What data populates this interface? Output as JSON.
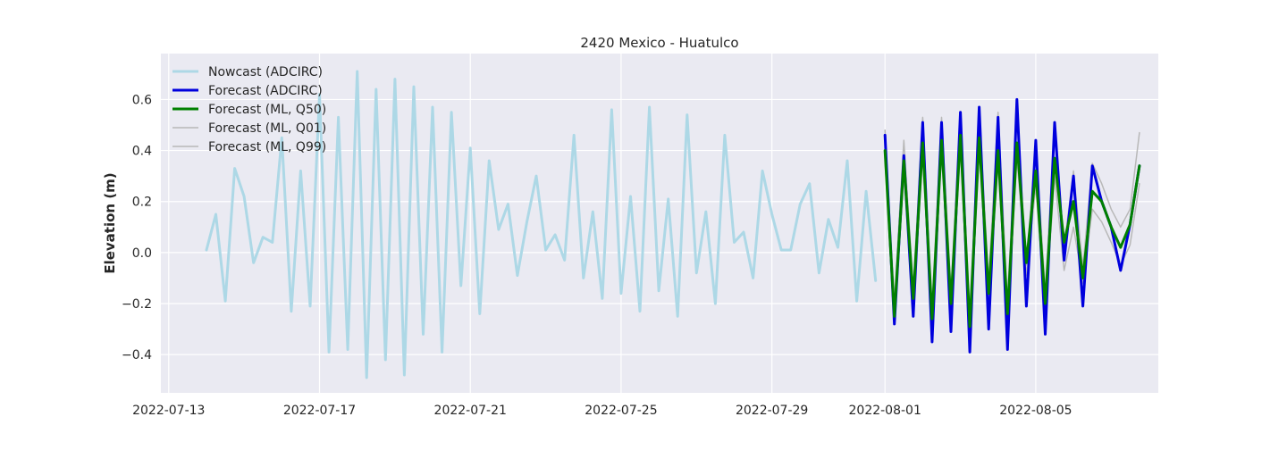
{
  "chart_data": {
    "type": "line",
    "title": "2420 Mexico - Huatulco",
    "xlabel": "",
    "ylabel": "Elevation (m)",
    "x_axis_type": "date",
    "xlim": [
      "2022-07-12T19:00",
      "2022-08-08T06:00"
    ],
    "ylim": [
      -0.55,
      0.78
    ],
    "x_ticks": [
      "2022-07-13",
      "2022-07-17",
      "2022-07-21",
      "2022-07-25",
      "2022-07-29",
      "2022-08-01",
      "2022-08-05"
    ],
    "y_ticks": [
      -0.4,
      -0.2,
      0.0,
      0.2,
      0.4,
      0.6
    ],
    "y_tick_labels": [
      "−0.4",
      "−0.2",
      "0.0",
      "0.2",
      "0.4",
      "0.6"
    ],
    "grid": true,
    "legend_position": "top-left",
    "background": "#eaeaf2",
    "series": [
      {
        "name": "Nowcast (ADCIRC)",
        "color": "#add8e6",
        "width": 3,
        "start": "2022-07-14T00:00",
        "step_hours": 6,
        "values": [
          0.01,
          0.15,
          -0.19,
          0.33,
          0.22,
          -0.04,
          0.06,
          0.04,
          0.45,
          -0.23,
          0.32,
          -0.21,
          0.62,
          -0.39,
          0.53,
          -0.38,
          0.71,
          -0.49,
          0.64,
          -0.42,
          0.68,
          -0.48,
          0.65,
          -0.32,
          0.57,
          -0.39,
          0.55,
          -0.13,
          0.41,
          -0.24,
          0.36,
          0.09,
          0.19,
          -0.09,
          0.12,
          0.3,
          0.01,
          0.07,
          -0.03,
          0.46,
          -0.1,
          0.16,
          -0.18,
          0.56,
          -0.16,
          0.22,
          -0.23,
          0.57,
          -0.15,
          0.21,
          -0.25,
          0.54,
          -0.08,
          0.16,
          -0.2,
          0.46,
          0.04,
          0.08,
          -0.1,
          0.32,
          0.15,
          0.01,
          0.01,
          0.19,
          0.27,
          -0.08,
          0.13,
          0.02,
          0.36,
          -0.19,
          0.24,
          -0.11
        ]
      },
      {
        "name": "Forecast (ADCIRC)",
        "color": "#0000dd",
        "width": 3,
        "start": "2022-08-01T00:00",
        "step_hours": 6,
        "values": [
          0.46,
          -0.28,
          0.38,
          -0.25,
          0.51,
          -0.35,
          0.51,
          -0.31,
          0.55,
          -0.39,
          0.57,
          -0.3,
          0.53,
          -0.38,
          0.6,
          -0.21,
          0.44,
          -0.32,
          0.51,
          -0.03,
          0.3,
          -0.21,
          0.34,
          0.2,
          0.1,
          -0.07,
          0.11,
          0.34
        ]
      },
      {
        "name": "Forecast (ML, Q50)",
        "color": "#008000",
        "width": 3,
        "start": "2022-08-01T00:00",
        "step_hours": 6,
        "values": [
          0.4,
          -0.25,
          0.36,
          -0.18,
          0.43,
          -0.26,
          0.44,
          -0.2,
          0.46,
          -0.29,
          0.45,
          -0.16,
          0.4,
          -0.24,
          0.43,
          -0.04,
          0.32,
          -0.2,
          0.37,
          0.04,
          0.2,
          -0.1,
          0.24,
          0.2,
          0.1,
          0.02,
          0.11,
          0.34
        ]
      },
      {
        "name": "Forecast (ML, Q01)",
        "color": "#b8b8b8",
        "width": 1.5,
        "start": "2022-08-01T00:00",
        "step_hours": 6,
        "values": [
          0.36,
          -0.28,
          0.3,
          -0.22,
          0.38,
          -0.3,
          0.39,
          -0.25,
          0.41,
          -0.33,
          0.4,
          -0.21,
          0.35,
          -0.28,
          0.37,
          -0.09,
          0.26,
          -0.24,
          0.3,
          -0.07,
          0.1,
          -0.12,
          0.17,
          0.12,
          0.04,
          -0.05,
          0.03,
          0.27
        ]
      },
      {
        "name": "Forecast (ML, Q99)",
        "color": "#b8b8b8",
        "width": 1.5,
        "start": "2022-08-01T00:00",
        "step_hours": 6,
        "values": [
          0.48,
          -0.19,
          0.44,
          -0.14,
          0.53,
          -0.21,
          0.53,
          -0.15,
          0.55,
          -0.24,
          0.55,
          -0.11,
          0.55,
          -0.19,
          0.56,
          -0.05,
          0.43,
          -0.15,
          0.5,
          0.02,
          0.32,
          -0.06,
          0.35,
          0.27,
          0.17,
          0.1,
          0.17,
          0.47
        ]
      }
    ]
  }
}
